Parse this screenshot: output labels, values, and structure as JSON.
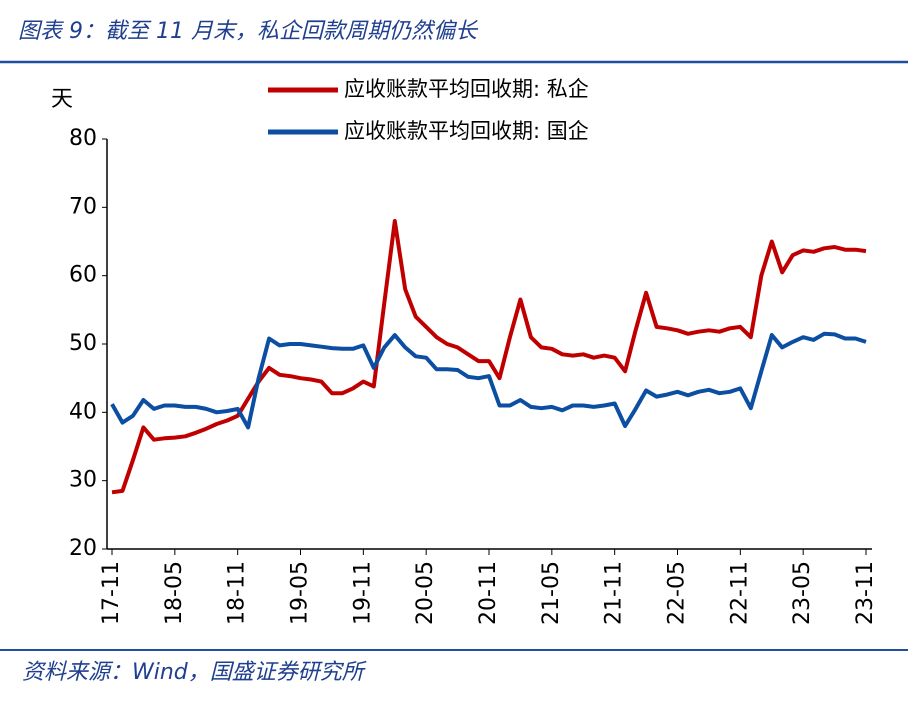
{
  "chart_data": {
    "type": "line",
    "title": "图表 9：截至 11 月末，私企回款周期仍然偏长",
    "source": "资料来源：Wind，国盛证券研究所",
    "y_label": "天",
    "categories": [
      "17-11",
      null,
      null,
      null,
      null,
      null,
      "18-05",
      null,
      null,
      null,
      null,
      null,
      "18-11",
      null,
      null,
      null,
      null,
      null,
      "19-05",
      null,
      null,
      null,
      null,
      null,
      "19-11",
      null,
      null,
      null,
      null,
      null,
      "20-05",
      null,
      null,
      null,
      null,
      null,
      "20-11",
      null,
      null,
      null,
      null,
      null,
      "21-05",
      null,
      null,
      null,
      null,
      null,
      "21-11",
      null,
      null,
      null,
      null,
      null,
      "22-05",
      null,
      null,
      null,
      null,
      null,
      "22-11",
      null,
      null,
      null,
      null,
      null,
      "23-05",
      null,
      null,
      null,
      null,
      null,
      "23-11"
    ],
    "series": [
      {
        "name": "应收账款平均回收期: 私企",
        "color": "#c00000",
        "values": [
          28.3,
          28.5,
          33,
          37.8,
          36,
          36.2,
          36.3,
          36.5,
          37,
          37.6,
          38.3,
          38.8,
          39.5,
          42,
          44.5,
          46.5,
          45.5,
          45.3,
          45,
          44.8,
          44.5,
          42.8,
          42.8,
          43.5,
          44.5,
          43.8,
          56,
          68,
          58,
          54,
          52.5,
          51,
          50,
          49.5,
          48.5,
          47.5,
          47.5,
          45,
          51,
          56.5,
          51,
          49.5,
          49.3,
          48.5,
          48.3,
          48.5,
          48,
          48.3,
          48,
          46,
          52,
          57.5,
          52.5,
          52.3,
          52,
          51.5,
          51.8,
          52,
          51.8,
          52.3,
          52.5,
          51,
          60,
          65,
          60.5,
          63,
          63.7,
          63.5,
          64,
          64.2,
          63.8,
          63.8,
          63.6
        ]
      },
      {
        "name": "应收账款平均回收期: 国企",
        "color": "#0b4ea2",
        "values": [
          41.2,
          38.5,
          39.5,
          41.8,
          40.5,
          41,
          41,
          40.8,
          40.8,
          40.5,
          40,
          40.2,
          40.5,
          37.8,
          45,
          50.8,
          49.8,
          50,
          50,
          49.8,
          49.6,
          49.4,
          49.3,
          49.3,
          49.8,
          46.5,
          49.5,
          51.3,
          49.5,
          48.2,
          48,
          46.3,
          46.3,
          46.2,
          45.2,
          45,
          45.3,
          41,
          41,
          41.8,
          40.8,
          40.6,
          40.8,
          40.3,
          41,
          41,
          40.8,
          41,
          41.3,
          38,
          40.5,
          43.2,
          42.3,
          42.6,
          43,
          42.5,
          43,
          43.3,
          42.8,
          43,
          43.5,
          40.6,
          46,
          51.3,
          49.5,
          50.3,
          51,
          50.6,
          51.5,
          51.4,
          50.8,
          50.8,
          50.3
        ]
      }
    ],
    "ylim": [
      20,
      80
    ],
    "yticks": [
      20,
      30,
      40,
      50,
      60,
      70,
      80
    ],
    "grid": false
  }
}
